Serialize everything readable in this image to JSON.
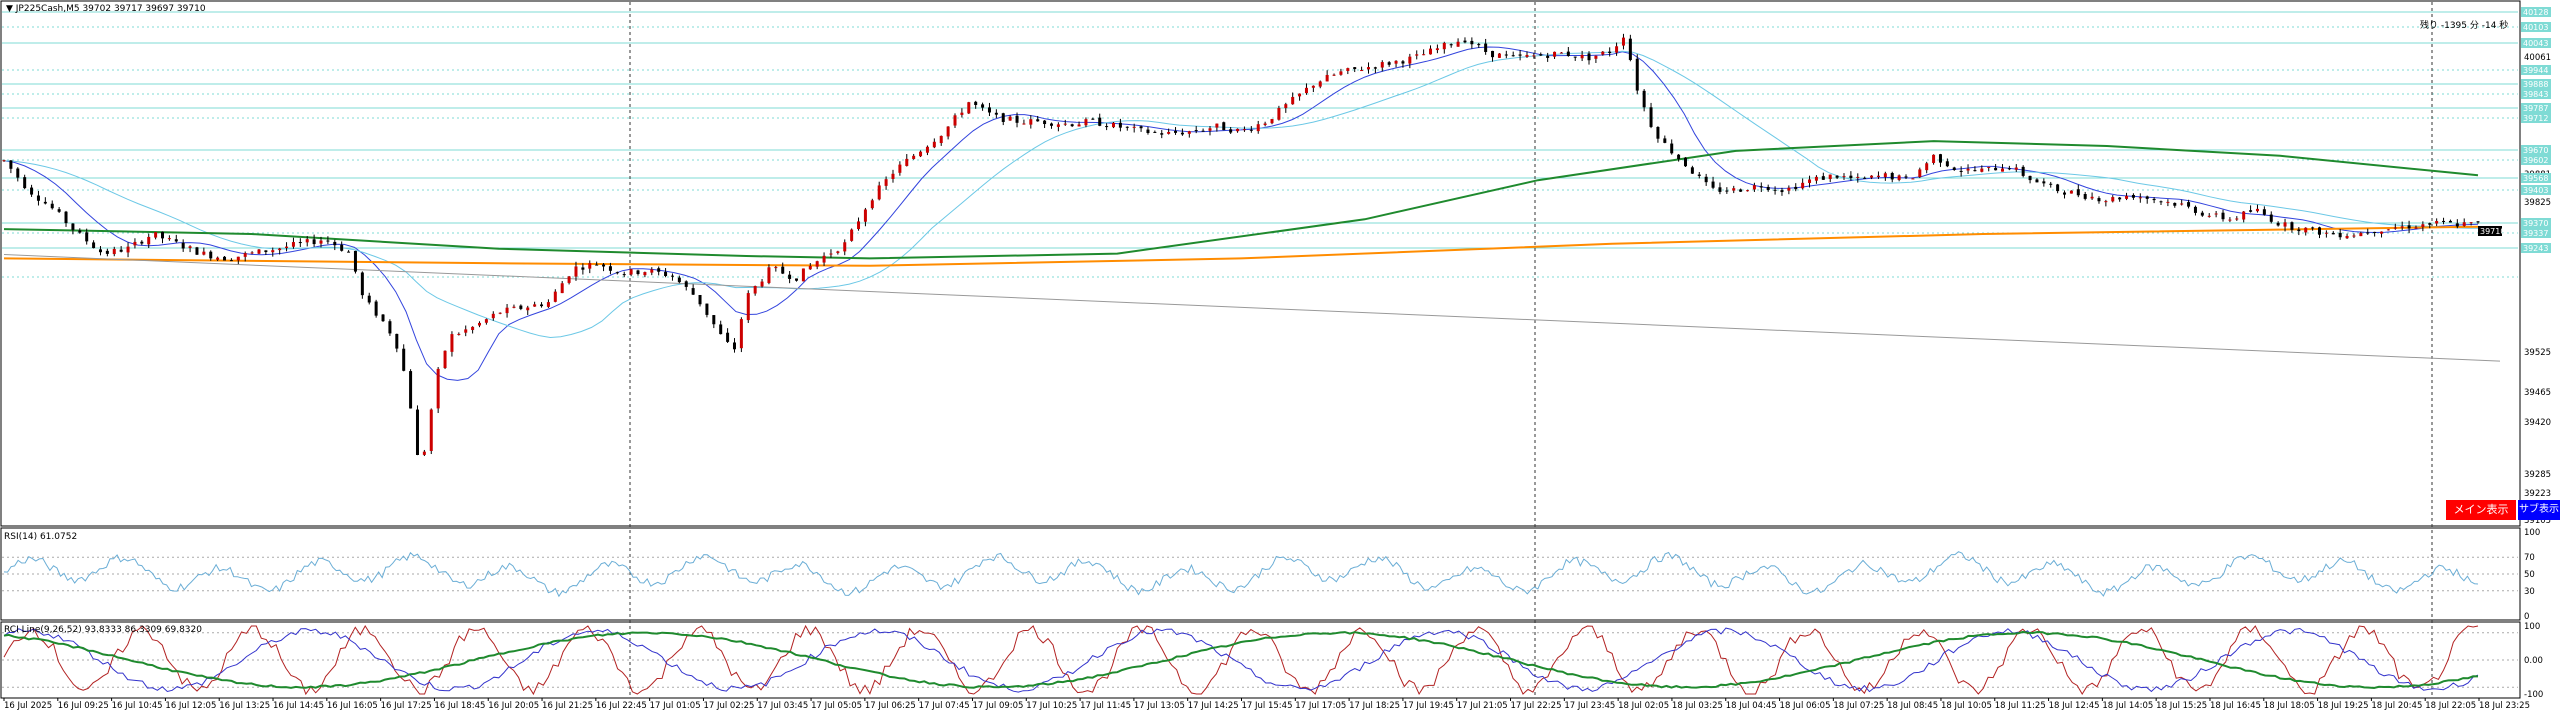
{
  "main": {
    "header": "▼ JP225Cash,M5  39702 39717 39697 39710",
    "remaining_time": "残り -1395 分 -14 秒",
    "current_price_tag": "39710",
    "price_ticks": [
      "40061",
      "40005",
      "39881",
      "39825",
      "39763",
      "39525",
      "39465",
      "39420",
      "39285",
      "39223",
      "39165",
      "39105"
    ],
    "level_tags": [
      "40128",
      "40103",
      "40043",
      "39944",
      "39888",
      "39843",
      "39787",
      "39712",
      "39670",
      "39602",
      "39568",
      "39403",
      "39370",
      "39337",
      "39243"
    ],
    "buttons": {
      "main": "メイン表示",
      "sub": "サブ表示"
    },
    "colors": {
      "main_button": "#ff0000",
      "sub_button": "#0000ff",
      "level": "#7fdbd5",
      "ma_long_green": "#1f8a2e",
      "ma_orange": "#ff8c00",
      "ma_blue": "#3344dd",
      "ma_cyan": "#6cc8e6"
    }
  },
  "rsi": {
    "header": "RSI(14) 61.0752",
    "ticks": [
      "100",
      "70",
      "50",
      "30",
      "0"
    ],
    "color": "#6baed6"
  },
  "rci": {
    "header": "RCI Line(9,26,52) 93.8333 86.3309 69.8320",
    "ticks": [
      "100",
      "0.00",
      "-100"
    ],
    "colors": {
      "fast": "#b22222",
      "mid": "#3333cc",
      "slow": "#1f8a2e"
    }
  },
  "time_axis": [
    "16 Jul 2025",
    "16 Jul 09:25",
    "16 Jul 10:45",
    "16 Jul 12:05",
    "16 Jul 13:25",
    "16 Jul 14:45",
    "16 Jul 16:05",
    "16 Jul 17:25",
    "16 Jul 18:45",
    "16 Jul 20:05",
    "16 Jul 21:25",
    "16 Jul 22:45",
    "17 Jul 01:05",
    "17 Jul 02:25",
    "17 Jul 03:45",
    "17 Jul 05:05",
    "17 Jul 06:25",
    "17 Jul 07:45",
    "17 Jul 09:05",
    "17 Jul 10:25",
    "17 Jul 11:45",
    "17 Jul 13:05",
    "17 Jul 14:25",
    "17 Jul 15:45",
    "17 Jul 17:05",
    "17 Jul 18:25",
    "17 Jul 19:45",
    "17 Jul 21:05",
    "17 Jul 22:25",
    "17 Jul 23:45",
    "18 Jul 02:05",
    "18 Jul 03:25",
    "18 Jul 04:45",
    "18 Jul 06:05",
    "18 Jul 07:25",
    "18 Jul 08:45",
    "18 Jul 10:05",
    "18 Jul 11:25",
    "18 Jul 12:45",
    "18 Jul 14:05",
    "18 Jul 15:25",
    "18 Jul 16:45",
    "18 Jul 18:05",
    "18 Jul 19:25",
    "18 Jul 20:45",
    "18 Jul 22:05",
    "18 Jul 23:25"
  ],
  "chart_data": {
    "type": "candlestick",
    "symbol": "JP225Cash",
    "timeframe": "M5",
    "last_bar": {
      "open": 39702,
      "high": 39717,
      "low": 39697,
      "close": 39710
    },
    "y_range": [
      39105,
      40140
    ],
    "close_path": [
      [
        0,
        39840
      ],
      [
        0.01,
        39780
      ],
      [
        0.02,
        39740
      ],
      [
        0.03,
        39690
      ],
      [
        0.04,
        39650
      ],
      [
        0.05,
        39660
      ],
      [
        0.06,
        39690
      ],
      [
        0.07,
        39670
      ],
      [
        0.08,
        39650
      ],
      [
        0.09,
        39640
      ],
      [
        0.1,
        39650
      ],
      [
        0.11,
        39660
      ],
      [
        0.12,
        39670
      ],
      [
        0.13,
        39680
      ],
      [
        0.14,
        39650
      ],
      [
        0.145,
        39560
      ],
      [
        0.155,
        39500
      ],
      [
        0.16,
        39450
      ],
      [
        0.165,
        39320
      ],
      [
        0.168,
        39200
      ],
      [
        0.17,
        39250
      ],
      [
        0.175,
        39400
      ],
      [
        0.18,
        39480
      ],
      [
        0.19,
        39500
      ],
      [
        0.2,
        39530
      ],
      [
        0.21,
        39540
      ],
      [
        0.22,
        39550
      ],
      [
        0.23,
        39620
      ],
      [
        0.24,
        39630
      ],
      [
        0.25,
        39610
      ],
      [
        0.26,
        39615
      ],
      [
        0.27,
        39605
      ],
      [
        0.28,
        39560
      ],
      [
        0.29,
        39480
      ],
      [
        0.295,
        39450
      ],
      [
        0.3,
        39560
      ],
      [
        0.31,
        39620
      ],
      [
        0.32,
        39600
      ],
      [
        0.33,
        39640
      ],
      [
        0.34,
        39670
      ],
      [
        0.35,
        39760
      ],
      [
        0.36,
        39820
      ],
      [
        0.37,
        39860
      ],
      [
        0.38,
        39900
      ],
      [
        0.39,
        39960
      ],
      [
        0.4,
        39930
      ],
      [
        0.41,
        39920
      ],
      [
        0.42,
        39920
      ],
      [
        0.43,
        39915
      ],
      [
        0.44,
        39920
      ],
      [
        0.45,
        39910
      ],
      [
        0.46,
        39900
      ],
      [
        0.47,
        39895
      ],
      [
        0.48,
        39900
      ],
      [
        0.49,
        39910
      ],
      [
        0.5,
        39900
      ],
      [
        0.51,
        39920
      ],
      [
        0.52,
        39960
      ],
      [
        0.53,
        40000
      ],
      [
        0.54,
        40020
      ],
      [
        0.55,
        40030
      ],
      [
        0.56,
        40040
      ],
      [
        0.57,
        40050
      ],
      [
        0.58,
        40070
      ],
      [
        0.59,
        40090
      ],
      [
        0.6,
        40060
      ],
      [
        0.61,
        40050
      ],
      [
        0.62,
        40055
      ],
      [
        0.63,
        40060
      ],
      [
        0.64,
        40050
      ],
      [
        0.65,
        40065
      ],
      [
        0.655,
        40100
      ],
      [
        0.66,
        39990
      ],
      [
        0.665,
        39920
      ],
      [
        0.67,
        39880
      ],
      [
        0.68,
        39830
      ],
      [
        0.69,
        39780
      ],
      [
        0.7,
        39780
      ],
      [
        0.71,
        39790
      ],
      [
        0.72,
        39780
      ],
      [
        0.73,
        39800
      ],
      [
        0.74,
        39810
      ],
      [
        0.75,
        39800
      ],
      [
        0.76,
        39810
      ],
      [
        0.77,
        39800
      ],
      [
        0.78,
        39850
      ],
      [
        0.79,
        39820
      ],
      [
        0.8,
        39820
      ],
      [
        0.81,
        39830
      ],
      [
        0.82,
        39800
      ],
      [
        0.83,
        39780
      ],
      [
        0.84,
        39770
      ],
      [
        0.85,
        39760
      ],
      [
        0.86,
        39770
      ],
      [
        0.87,
        39760
      ],
      [
        0.88,
        39750
      ],
      [
        0.89,
        39730
      ],
      [
        0.9,
        39720
      ],
      [
        0.91,
        39740
      ],
      [
        0.92,
        39710
      ],
      [
        0.93,
        39700
      ],
      [
        0.94,
        39690
      ],
      [
        0.95,
        39690
      ],
      [
        0.96,
        39700
      ],
      [
        0.97,
        39705
      ],
      [
        0.98,
        39710
      ],
      [
        0.985,
        39712
      ],
      [
        0.99,
        39710
      ]
    ]
  }
}
